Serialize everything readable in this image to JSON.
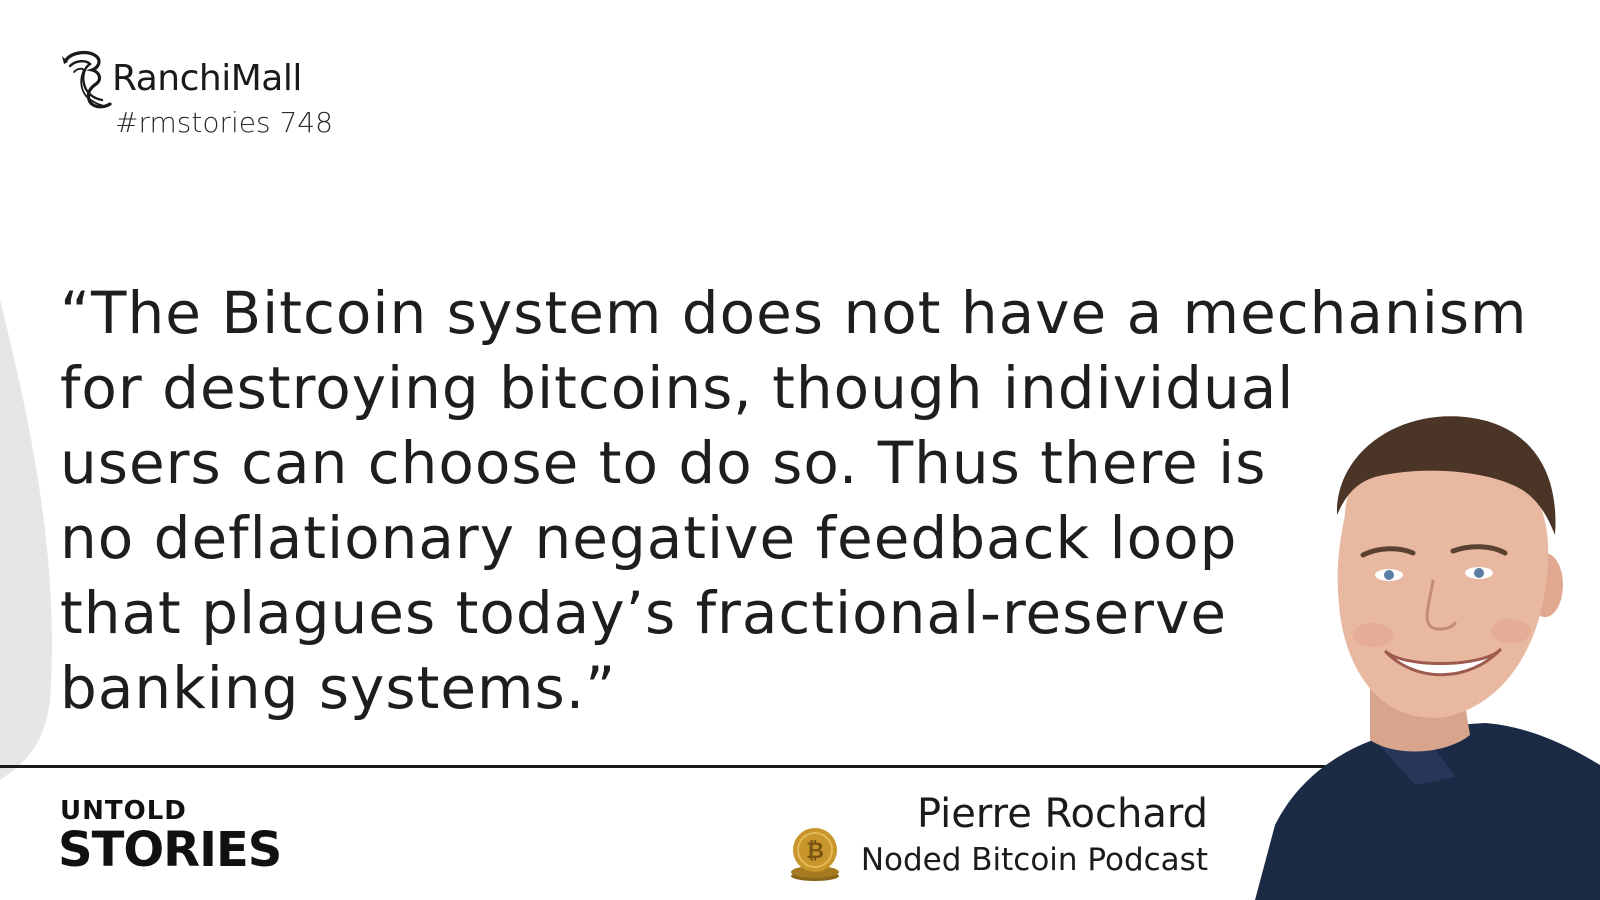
{
  "brand": {
    "name": "RanchiMall",
    "tag": "#rmstories 748"
  },
  "quote": {
    "lines": [
      "“The Bitcoin system does not have a mechanism",
      "for destroying bitcoins, though individual",
      "users can choose to do so. Thus there is",
      "no deflationary negative feedback loop",
      "that plagues today’s fractional-reserve",
      "banking systems.”"
    ]
  },
  "series": {
    "line1": "UNTOLD",
    "line2": "STORIES"
  },
  "speaker": {
    "name": "Pierre Rochard",
    "organization": "Noded Bitcoin Podcast"
  },
  "colors": {
    "text": "#1e1e1e",
    "rule": "#1a1a1a",
    "side_arc": "#e6e6e6",
    "coin_gold": "#c9962b",
    "shirt": "#1c2b45",
    "skin": "#e8b8a0",
    "hair": "#4a3526"
  },
  "icons": {
    "logo": "seahorse-logo-icon",
    "coin": "bitcoin-coin-icon"
  }
}
